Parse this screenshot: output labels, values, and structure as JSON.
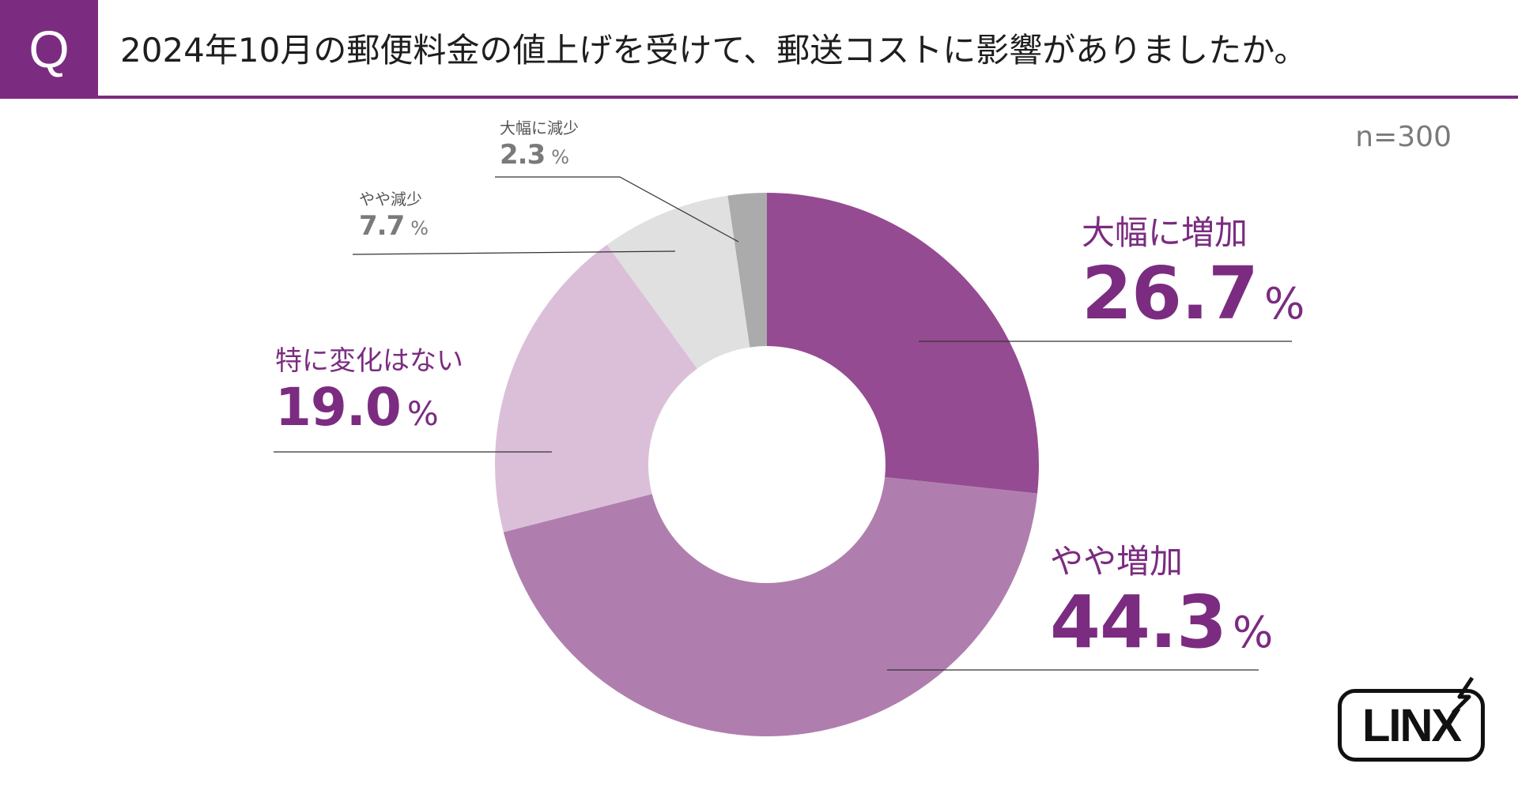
{
  "header": {
    "q_label": "Q",
    "question": "2024年10月の郵便料金の値上げを受けて、郵送コストに影響がありましたか。"
  },
  "sample_size": "n=300",
  "logo": {
    "text": "LINX"
  },
  "colors": {
    "accent": "#7b2c80",
    "large_increase": "#954b91",
    "slight_increase": "#b07eae",
    "no_change": "#dbbfd9",
    "slight_decrease": "#e0e0e0",
    "large_decrease": "#ababab"
  },
  "chart_data": {
    "type": "pie",
    "title": "2024年10月の郵便料金の値上げを受けて、郵送コストに影響がありましたか。",
    "donut": true,
    "unit": "%",
    "categories": [
      "大幅に増加",
      "やや増加",
      "特に変化はない",
      "やや減少",
      "大幅に減少"
    ],
    "values": [
      26.7,
      44.3,
      19.0,
      7.7,
      2.3
    ],
    "value_labels": [
      "26.7",
      "44.3",
      "19.0",
      "7.7",
      "2.3"
    ],
    "slice_colors": [
      "#954b91",
      "#b07eae",
      "#dbbfd9",
      "#e0e0e0",
      "#ababab"
    ],
    "start": "12 o'clock, clockwise"
  }
}
